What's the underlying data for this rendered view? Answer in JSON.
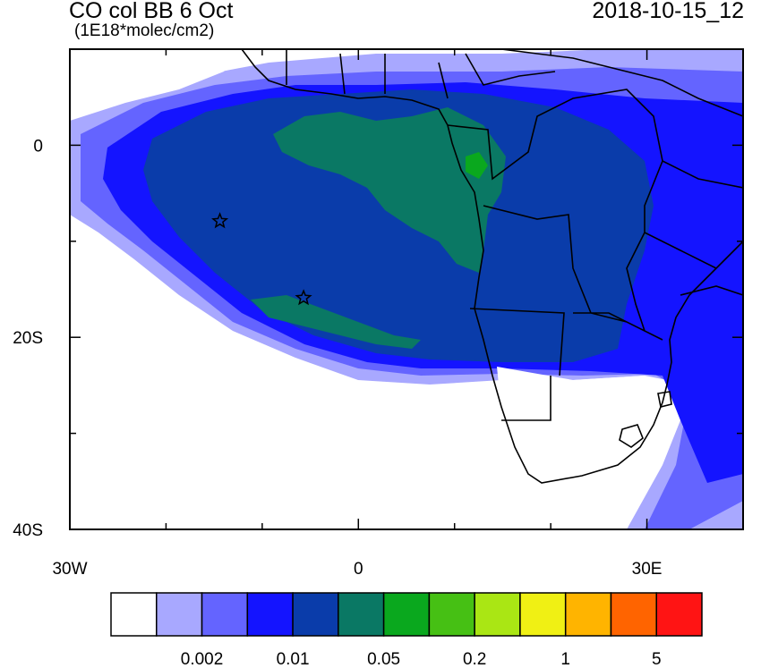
{
  "header": {
    "title": "CO col BB 6 Oct",
    "units": "(1E18*molec/cm2)",
    "timestamp": "2018-10-15_12"
  },
  "map": {
    "lon_range": [
      -30,
      40
    ],
    "lat_range": [
      -40,
      10
    ],
    "x_ticks": [
      {
        "value": -30,
        "label": "30W"
      },
      {
        "value": 0,
        "label": "0"
      },
      {
        "value": 30,
        "label": "30E"
      }
    ],
    "y_ticks": [
      {
        "value": 0,
        "label": "0"
      },
      {
        "value": -20,
        "label": "20S"
      },
      {
        "value": -40,
        "label": "40S"
      }
    ],
    "markers": [
      {
        "lon": -14.4,
        "lat": -7.9,
        "symbol": "star"
      },
      {
        "lon": -5.7,
        "lat": -15.9,
        "symbol": "star"
      }
    ]
  },
  "colorbar": {
    "colors": [
      "#ffffff",
      "#a8a8ff",
      "#6464ff",
      "#1414ff",
      "#0a3caa",
      "#0a7864",
      "#0aa81e",
      "#46c014",
      "#aae614",
      "#f0f014",
      "#ffb400",
      "#ff6400",
      "#ff1414"
    ],
    "tick_labels": [
      "0.002",
      "0.01",
      "0.05",
      "0.2",
      "1",
      "5"
    ]
  }
}
